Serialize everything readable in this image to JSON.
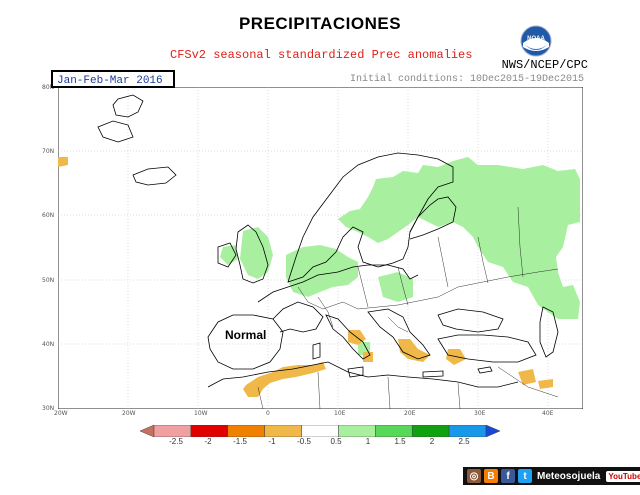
{
  "header": {
    "title": "PRECIPITACIONES",
    "subtitle": "CFSv2 seasonal standardized Prec anomalies",
    "period": "Jan-Feb-Mar 2016",
    "initial_conditions": "Initial conditions: 10Dec2015-19Dec2015",
    "agency": "NWS/NCEP/CPC"
  },
  "logo": {
    "text": "NOAA"
  },
  "map": {
    "annotation": "Normal",
    "lat_labels": [
      "80N",
      "70N",
      "60N",
      "50N",
      "40N",
      "30N"
    ],
    "lon_labels": [
      "20W",
      "20W",
      "10W",
      "0",
      "10E",
      "20E",
      "30E",
      "40E"
    ]
  },
  "colorbar": {
    "ticks": [
      "-2.5",
      "-2",
      "-1.5",
      "-1",
      "-0.5",
      "0.5",
      "1",
      "1.5",
      "2",
      "2.5"
    ],
    "colors": [
      "#c87060",
      "#f0a0a0",
      "#e00000",
      "#f08000",
      "#f0b848",
      "#ffffff",
      "#a8f0a0",
      "#58d858",
      "#10a010",
      "#1898e8",
      "#1848d8"
    ]
  },
  "social": {
    "label": "Meteosojuela",
    "icons": [
      "instagram-icon",
      "blogger-icon",
      "facebook-icon",
      "twitter-icon",
      "youtube-icon"
    ],
    "youtube": "YouTube"
  }
}
